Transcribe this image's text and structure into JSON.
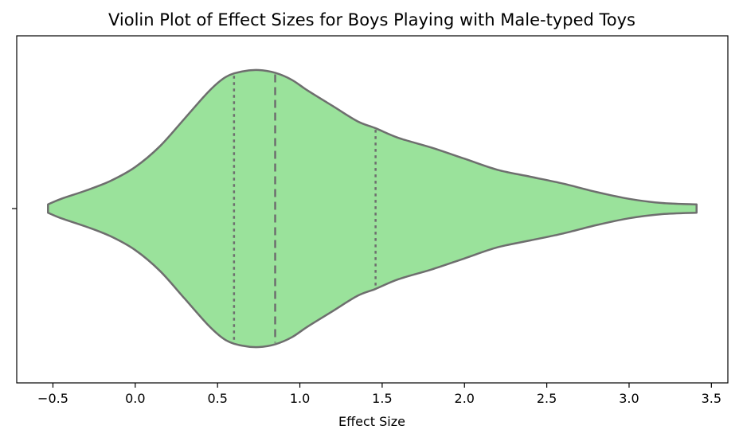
{
  "chart_data": {
    "type": "violin",
    "title": "Violin Plot of Effect Sizes for Boys Playing with Male-typed Toys",
    "xlabel": "Effect Size",
    "ylabel": "",
    "xlim": [
      -0.72,
      3.6
    ],
    "xticks": [
      -0.5,
      0.0,
      0.5,
      1.0,
      1.5,
      2.0,
      2.5,
      3.0,
      3.5
    ],
    "xtick_labels": [
      "−0.5",
      "0.0",
      "0.5",
      "1.0",
      "1.5",
      "2.0",
      "2.5",
      "3.0",
      "3.5"
    ],
    "grid": false,
    "fill_color": "#9ae29b",
    "line_color": "#6e6e6e",
    "density_profile": [
      [
        -0.53,
        0.03
      ],
      [
        -0.45,
        0.07
      ],
      [
        -0.3,
        0.13
      ],
      [
        -0.15,
        0.2
      ],
      [
        0.0,
        0.3
      ],
      [
        0.15,
        0.45
      ],
      [
        0.3,
        0.65
      ],
      [
        0.45,
        0.85
      ],
      [
        0.55,
        0.95
      ],
      [
        0.65,
        0.99
      ],
      [
        0.75,
        1.0
      ],
      [
        0.85,
        0.98
      ],
      [
        0.95,
        0.93
      ],
      [
        1.05,
        0.85
      ],
      [
        1.2,
        0.74
      ],
      [
        1.35,
        0.63
      ],
      [
        1.46,
        0.58
      ],
      [
        1.6,
        0.51
      ],
      [
        1.8,
        0.44
      ],
      [
        2.0,
        0.36
      ],
      [
        2.2,
        0.28
      ],
      [
        2.4,
        0.23
      ],
      [
        2.6,
        0.18
      ],
      [
        2.8,
        0.12
      ],
      [
        3.0,
        0.07
      ],
      [
        3.2,
        0.04
      ],
      [
        3.41,
        0.03
      ]
    ],
    "quartiles": {
      "q1": 0.6,
      "median": 0.85,
      "q3": 1.46
    }
  }
}
